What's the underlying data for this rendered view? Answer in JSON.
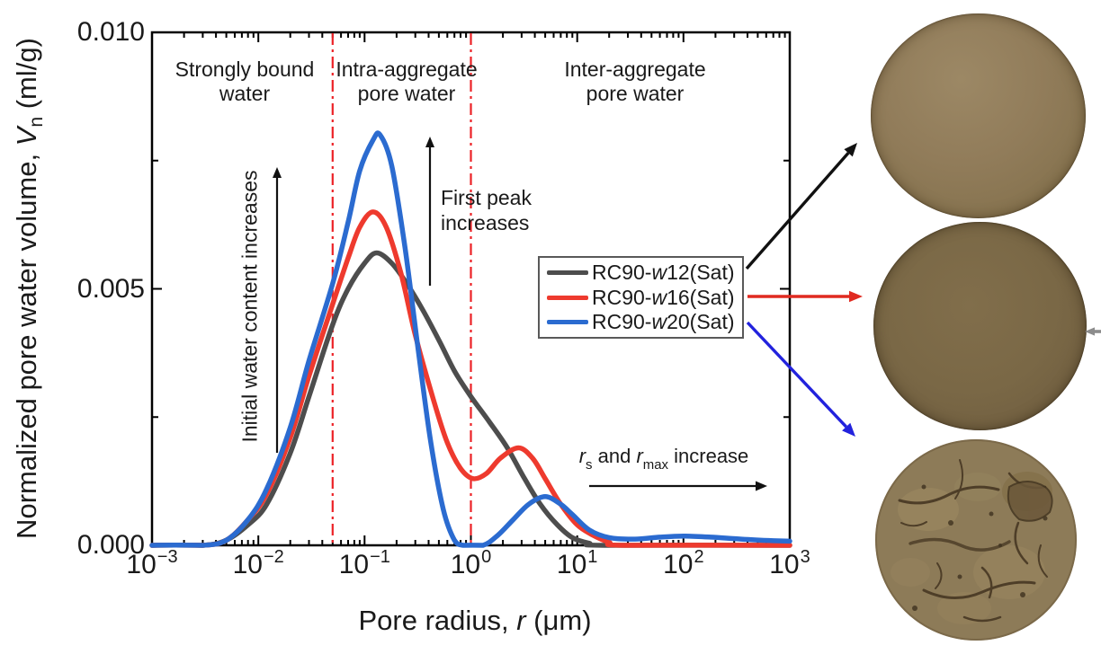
{
  "colors": {
    "axis": "#000000",
    "boundary_line": "#ec2227",
    "annotation_arrow": "#111111",
    "photo_arrow_black": "#111111",
    "photo_arrow_red": "#e02a20",
    "photo_arrow_blue": "#2222dd",
    "side_arrow_gray": "#8c8c8c"
  },
  "chart_data": {
    "type": "line",
    "x_scale": "log",
    "xlim": [
      0.001,
      1000
    ],
    "ylim": [
      0,
      0.01
    ],
    "xlabel": {
      "pre": "Pore radius, ",
      "var": "r",
      "post": " (μm)",
      "full": "Pore radius, r (μm)"
    },
    "ylabel": {
      "pre": "Normalized pore water volume, ",
      "var": "V",
      "sub": "n",
      "post": " (ml/g)",
      "full": "Normalized pore water volume, Vn (ml/g)"
    },
    "x_tick_exponents": [
      -3,
      -2,
      -1,
      0,
      1,
      2,
      3
    ],
    "y_ticks": [
      {
        "v": 0,
        "label": "0.000"
      },
      {
        "v": 0.005,
        "label": "0.005"
      },
      {
        "v": 0.01,
        "label": "0.010"
      }
    ],
    "y_minor_ticks": [
      0.0025,
      0.0075
    ],
    "boundary_lines_x_um": [
      0.05,
      1
    ],
    "series": [
      {
        "name": "RC90-w12(Sat)",
        "color": "#4d4d4d",
        "peak": {
          "r_um": 0.13,
          "v": 0.0057
        },
        "points": [
          [
            0.001,
            0
          ],
          [
            0.003,
            0
          ],
          [
            0.005,
            0.0001
          ],
          [
            0.008,
            0.0004
          ],
          [
            0.012,
            0.0008
          ],
          [
            0.02,
            0.0018
          ],
          [
            0.03,
            0.0029
          ],
          [
            0.05,
            0.0043
          ],
          [
            0.07,
            0.005
          ],
          [
            0.1,
            0.0055
          ],
          [
            0.13,
            0.0057
          ],
          [
            0.18,
            0.0055
          ],
          [
            0.25,
            0.0051
          ],
          [
            0.35,
            0.0046
          ],
          [
            0.5,
            0.004
          ],
          [
            0.7,
            0.0034
          ],
          [
            1.0,
            0.0029
          ],
          [
            1.5,
            0.0024
          ],
          [
            2.2,
            0.0019
          ],
          [
            3.2,
            0.0013
          ],
          [
            4.5,
            0.0008
          ],
          [
            6.5,
            0.0004
          ],
          [
            9,
            0.00015
          ],
          [
            13,
            4e-05
          ],
          [
            18,
            0
          ],
          [
            1000,
            0
          ]
        ]
      },
      {
        "name": "RC90-w16(Sat)",
        "color": "#ee3a2e",
        "peak": {
          "r_um": 0.12,
          "v": 0.0065
        },
        "second_peak": {
          "r_um": 2.8,
          "v": 0.0019
        },
        "points": [
          [
            0.001,
            0
          ],
          [
            0.003,
            0
          ],
          [
            0.005,
            0.0001
          ],
          [
            0.008,
            0.0005
          ],
          [
            0.012,
            0.001
          ],
          [
            0.02,
            0.0021
          ],
          [
            0.03,
            0.0033
          ],
          [
            0.05,
            0.0047
          ],
          [
            0.07,
            0.0056
          ],
          [
            0.09,
            0.0062
          ],
          [
            0.12,
            0.0065
          ],
          [
            0.16,
            0.0062
          ],
          [
            0.22,
            0.0053
          ],
          [
            0.3,
            0.0041
          ],
          [
            0.45,
            0.0028
          ],
          [
            0.6,
            0.002
          ],
          [
            0.8,
            0.0015
          ],
          [
            1.05,
            0.0013
          ],
          [
            1.4,
            0.0014
          ],
          [
            1.9,
            0.0017
          ],
          [
            2.8,
            0.0019
          ],
          [
            3.8,
            0.0017
          ],
          [
            5,
            0.0013
          ],
          [
            7,
            0.0008
          ],
          [
            10,
            0.0004
          ],
          [
            14,
            0.0002
          ],
          [
            20,
            6e-05
          ],
          [
            28,
            0
          ],
          [
            1000,
            0
          ]
        ]
      },
      {
        "name": "RC90-w20(Sat)",
        "color": "#2b6bd0",
        "peak": {
          "r_um": 0.13,
          "v": 0.008
        },
        "second_peak": {
          "r_um": 5,
          "v": 0.001
        },
        "points": [
          [
            0.001,
            0
          ],
          [
            0.003,
            0
          ],
          [
            0.005,
            0.0001
          ],
          [
            0.008,
            0.0005
          ],
          [
            0.012,
            0.0011
          ],
          [
            0.02,
            0.0023
          ],
          [
            0.03,
            0.0036
          ],
          [
            0.05,
            0.0051
          ],
          [
            0.07,
            0.0063
          ],
          [
            0.09,
            0.0073
          ],
          [
            0.12,
            0.0079
          ],
          [
            0.14,
            0.008
          ],
          [
            0.18,
            0.0074
          ],
          [
            0.24,
            0.0058
          ],
          [
            0.32,
            0.0038
          ],
          [
            0.42,
            0.002
          ],
          [
            0.55,
            0.0007
          ],
          [
            0.7,
            0.0001
          ],
          [
            0.85,
            0
          ],
          [
            1.3,
            0
          ],
          [
            1.8,
            0.0002
          ],
          [
            2.5,
            0.0005
          ],
          [
            3.5,
            0.0008
          ],
          [
            5,
            0.00095
          ],
          [
            7,
            0.0008
          ],
          [
            9,
            0.0006
          ],
          [
            13,
            0.0003
          ],
          [
            20,
            0.00015
          ],
          [
            35,
            0.00012
          ],
          [
            60,
            0.00016
          ],
          [
            100,
            0.00018
          ],
          [
            180,
            0.00016
          ],
          [
            350,
            0.00012
          ],
          [
            700,
            9e-05
          ],
          [
            1000,
            8e-05
          ]
        ]
      }
    ],
    "legend": {
      "position": "inside-right",
      "entries": [
        {
          "pre": "RC90-",
          "it": "w",
          "post": "12(Sat)"
        },
        {
          "pre": "RC90-",
          "it": "w",
          "post": "16(Sat)"
        },
        {
          "pre": "RC90-",
          "it": "w",
          "post": "20(Sat)"
        }
      ]
    },
    "annotations": {
      "regions": [
        {
          "line1": "Strongly bound",
          "line2": "water"
        },
        {
          "line1": "Intra-aggregate",
          "line2": "pore water"
        },
        {
          "line1": "Inter-aggregate",
          "line2": "pore water"
        }
      ],
      "first_peak": {
        "line1": "First peak",
        "line2": "increases"
      },
      "initial_water": "Initial water content increases",
      "rs_rmax": {
        "var1": "r",
        "sub1": "s",
        "mid": " and ",
        "var2": "r",
        "sub2": "max",
        "post": " increase"
      }
    }
  },
  "photos": [
    {
      "name": "sample-w12",
      "description": "smooth tan saturated soil disc",
      "base_color": "#8f7a58"
    },
    {
      "name": "sample-w16",
      "description": "smooth dark brown saturated soil disc",
      "base_color": "#7a6745"
    },
    {
      "name": "sample-w20",
      "description": "cracked clumpy brown saturated soil disc",
      "base_color": "#8d7b58",
      "crack_color": "#4e3e28"
    }
  ]
}
